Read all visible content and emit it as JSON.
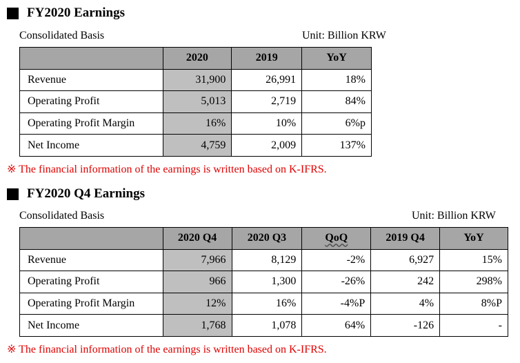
{
  "annual": {
    "title": "FY2020 Earnings",
    "basis": "Consolidated Basis",
    "unit": "Unit: Billion KRW",
    "headers": [
      "",
      "2020",
      "2019",
      "YoY"
    ],
    "rows": [
      {
        "label": "Revenue",
        "values": [
          "31,900",
          "26,991",
          "18%"
        ]
      },
      {
        "label": "Operating Profit",
        "values": [
          "5,013",
          "2,719",
          "84%"
        ]
      },
      {
        "label": "Operating Profit Margin",
        "values": [
          "16%",
          "10%",
          "6%p"
        ]
      },
      {
        "label": "Net Income",
        "values": [
          "4,759",
          "2,009",
          "137%"
        ]
      }
    ],
    "note": "※ The financial information of the earnings is written based on K-IFRS."
  },
  "quarterly": {
    "title": "FY2020 Q4 Earnings",
    "basis": "Consolidated Basis",
    "unit": "Unit: Billion KRW",
    "headers": [
      "",
      "2020 Q4",
      "2020 Q3",
      "QoQ",
      "2019 Q4",
      "YoY"
    ],
    "rows": [
      {
        "label": "Revenue",
        "values": [
          "7,966",
          "8,129",
          "-2%",
          "6,927",
          "15%"
        ]
      },
      {
        "label": "Operating Profit",
        "values": [
          "966",
          "1,300",
          "-26%",
          "242",
          "298%"
        ]
      },
      {
        "label": "Operating Profit Margin",
        "values": [
          "12%",
          "16%",
          "-4%P",
          "4%",
          "8%P"
        ]
      },
      {
        "label": "Net Income",
        "values": [
          "1,768",
          "1,078",
          "64%",
          "-126",
          "-"
        ]
      }
    ],
    "note": "※ The financial information of the earnings is written based on K-IFRS."
  },
  "colors": {
    "header_bg": "#a6a6a6",
    "highlight_bg": "#bfbfbf",
    "note": "#e00000"
  }
}
